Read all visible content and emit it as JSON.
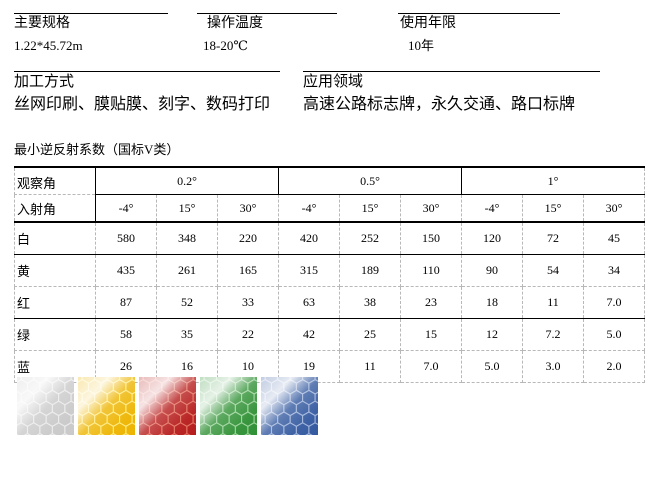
{
  "info": {
    "row1": [
      {
        "label": "主要规格",
        "value": "1.22*45.72m"
      },
      {
        "label": "操作温度",
        "value": "18-20℃"
      },
      {
        "label": "使用年限",
        "value": "10年"
      }
    ],
    "row2": [
      {
        "label": "加工方式",
        "value": "丝网印刷、膜贴膜、刻字、数码打印"
      },
      {
        "label": "应用领域",
        "value": "高速公路标志牌，永久交通、路口标牌"
      }
    ]
  },
  "table": {
    "title": "最小逆反射系数（国标V类）",
    "corner_row1": "观察角",
    "corner_row2": "入射角",
    "observation_angles": [
      "0.2°",
      "0.5°",
      "1°"
    ],
    "entrance_angles": [
      "-4°",
      "15°",
      "30°",
      "-4°",
      "15°",
      "30°",
      "-4°",
      "15°",
      "30°"
    ],
    "rows": [
      {
        "color_label": "白",
        "values": [
          "580",
          "348",
          "220",
          "420",
          "252",
          "150",
          "120",
          "72",
          "45"
        ]
      },
      {
        "color_label": "黄",
        "values": [
          "435",
          "261",
          "165",
          "315",
          "189",
          "110",
          "90",
          "54",
          "34"
        ]
      },
      {
        "color_label": "红",
        "values": [
          "87",
          "52",
          "33",
          "63",
          "38",
          "23",
          "18",
          "11",
          "7.0"
        ]
      },
      {
        "color_label": "绿",
        "values": [
          "58",
          "35",
          "22",
          "42",
          "25",
          "15",
          "12",
          "7.2",
          "5.0"
        ]
      },
      {
        "color_label": "蓝",
        "values": [
          "26",
          "16",
          "10",
          "19",
          "11",
          "7.0",
          "5.0",
          "3.0",
          "2.0"
        ]
      }
    ]
  },
  "swatches": [
    {
      "name": "white-reflective-sheeting",
      "base": "#d2d2d2",
      "hex_fill": "#c9c9c9",
      "hex_stroke": "#eaeaea"
    },
    {
      "name": "yellow-reflective-sheeting",
      "base": "#f6c705",
      "hex_fill": "#edb400",
      "hex_stroke": "#ffe977"
    },
    {
      "name": "red-reflective-sheeting",
      "base": "#cb2424",
      "hex_fill": "#b61c1c",
      "hex_stroke": "#e2705e"
    },
    {
      "name": "green-reflective-sheeting",
      "base": "#41a443",
      "hex_fill": "#2f9034",
      "hex_stroke": "#97d297"
    },
    {
      "name": "blue-reflective-sheeting",
      "base": "#436ab2",
      "hex_fill": "#33599f",
      "hex_stroke": "#9db1da"
    }
  ]
}
